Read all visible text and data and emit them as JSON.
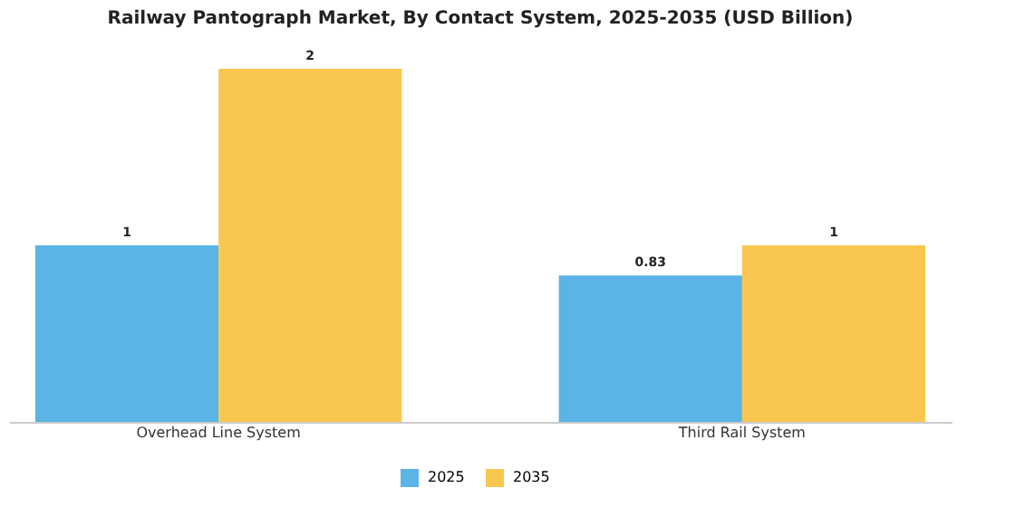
{
  "chart_data": {
    "type": "bar",
    "title": "Railway Pantograph Market, By Contact System, 2025-2035 (USD Billion)",
    "categories": [
      "Overhead Line System",
      "Third Rail System"
    ],
    "data_labels": true,
    "legend": "bottom",
    "grid": false,
    "series": [
      {
        "name": "2025",
        "color": "#5ab4e5",
        "values": [
          1,
          0.83
        ]
      },
      {
        "name": "2035",
        "color": "#f9c74f",
        "values": [
          2,
          1
        ]
      }
    ]
  }
}
